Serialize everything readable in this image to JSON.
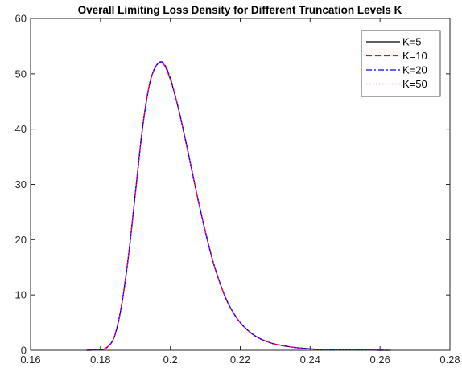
{
  "chart_data": {
    "type": "line",
    "title": "Overall Limiting Loss Density for Different Truncation Levels K",
    "xlabel": "",
    "ylabel": "",
    "xlim": [
      0.16,
      0.28
    ],
    "ylim": [
      0,
      60
    ],
    "xticks": [
      0.16,
      0.18,
      0.2,
      0.22,
      0.24,
      0.26,
      0.28
    ],
    "xtick_labels": [
      "0.16",
      "0.18",
      "0.2",
      "0.22",
      "0.24",
      "0.26",
      "0.28"
    ],
    "yticks": [
      0,
      10,
      20,
      30,
      40,
      50,
      60
    ],
    "ytick_labels": [
      "0",
      "10",
      "20",
      "30",
      "40",
      "50",
      "60"
    ],
    "grid": false,
    "legend_position": "top-right",
    "x": [
      0.176,
      0.18,
      0.182,
      0.184,
      0.186,
      0.188,
      0.19,
      0.192,
      0.194,
      0.196,
      0.198,
      0.2,
      0.202,
      0.204,
      0.206,
      0.208,
      0.21,
      0.212,
      0.214,
      0.216,
      0.218,
      0.22,
      0.222,
      0.224,
      0.226,
      0.228,
      0.23,
      0.235,
      0.24,
      0.245,
      0.25,
      0.255,
      0.26,
      0.263
    ],
    "series": [
      {
        "name": "K=5",
        "color": "#000000",
        "dash": "solid",
        "values": [
          0,
          0.1,
          0.6,
          2.5,
          8,
          17,
          28.5,
          40,
          48,
          51.5,
          51.8,
          49,
          44.5,
          39,
          33,
          27,
          21.5,
          16.5,
          12.5,
          9.2,
          6.8,
          5,
          3.7,
          2.7,
          2,
          1.5,
          1.1,
          0.55,
          0.25,
          0.12,
          0.06,
          0.03,
          0.01,
          0
        ]
      },
      {
        "name": "K=10",
        "color": "#ff0000",
        "dash": "dashed",
        "values": [
          0,
          0.1,
          0.6,
          2.5,
          8,
          17,
          28.5,
          40,
          48,
          51.5,
          51.8,
          49,
          44.5,
          39,
          33,
          27,
          21.5,
          16.5,
          12.5,
          9.2,
          6.8,
          5,
          3.7,
          2.7,
          2,
          1.5,
          1.1,
          0.55,
          0.25,
          0.12,
          0.06,
          0.03,
          0.01,
          0
        ]
      },
      {
        "name": "K=20",
        "color": "#0000ff",
        "dash": "dashdot",
        "values": [
          0,
          0.1,
          0.6,
          2.5,
          8,
          17,
          28.5,
          40,
          48,
          51.5,
          52,
          49.2,
          44.5,
          39,
          33,
          27,
          21.5,
          16.5,
          12.5,
          9.2,
          6.8,
          5,
          3.7,
          2.7,
          2,
          1.5,
          1.1,
          0.55,
          0.25,
          0.12,
          0.06,
          0.03,
          0.01,
          0
        ]
      },
      {
        "name": "K=50",
        "color": "#ff00ff",
        "dash": "dotted",
        "values": [
          0,
          0.1,
          0.6,
          2.5,
          8,
          17,
          28.5,
          40,
          48,
          51.5,
          51.8,
          49,
          44.5,
          39,
          33,
          27,
          21.5,
          16.5,
          12.5,
          9.2,
          6.8,
          5,
          3.7,
          2.7,
          2,
          1.5,
          1.1,
          0.55,
          0.25,
          0.12,
          0.06,
          0.03,
          0.01,
          0
        ]
      }
    ]
  }
}
